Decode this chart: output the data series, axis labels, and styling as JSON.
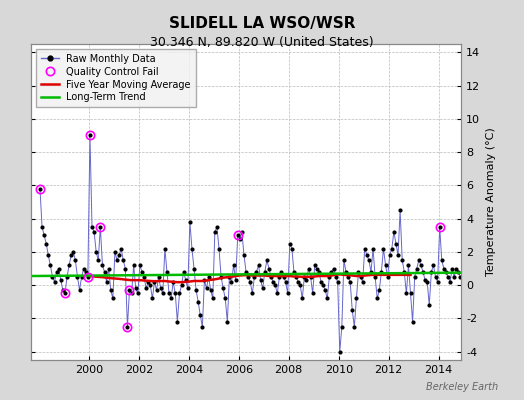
{
  "title": "SLIDELL LA WSO/WSR",
  "subtitle": "30.346 N, 89.820 W (United States)",
  "ylabel": "Temperature Anomaly (°C)",
  "watermark": "Berkeley Earth",
  "ylim": [
    -4.5,
    14.5
  ],
  "yticks": [
    -4,
    -2,
    0,
    2,
    4,
    6,
    8,
    10,
    12,
    14
  ],
  "xlim": [
    1997.7,
    2014.9
  ],
  "xticks": [
    2000,
    2002,
    2004,
    2006,
    2008,
    2010,
    2012,
    2014
  ],
  "bg_color": "#d8d8d8",
  "plot_bg_color": "#ffffff",
  "line_color": "#6666cc",
  "dot_color": "#000000",
  "ma_color": "#dd0000",
  "trend_color": "#00bb00",
  "qc_color": "#ff00ff",
  "raw_data": [
    [
      1998.042,
      5.8
    ],
    [
      1998.125,
      3.5
    ],
    [
      1998.208,
      3.0
    ],
    [
      1998.292,
      2.5
    ],
    [
      1998.375,
      1.8
    ],
    [
      1998.458,
      1.2
    ],
    [
      1998.542,
      0.5
    ],
    [
      1998.625,
      0.2
    ],
    [
      1998.708,
      0.8
    ],
    [
      1998.792,
      1.0
    ],
    [
      1998.875,
      0.3
    ],
    [
      1998.958,
      -0.3
    ],
    [
      1999.042,
      -0.5
    ],
    [
      1999.125,
      0.5
    ],
    [
      1999.208,
      1.2
    ],
    [
      1999.292,
      1.8
    ],
    [
      1999.375,
      2.0
    ],
    [
      1999.458,
      1.5
    ],
    [
      1999.542,
      0.5
    ],
    [
      1999.625,
      -0.3
    ],
    [
      1999.708,
      0.5
    ],
    [
      1999.792,
      1.0
    ],
    [
      1999.875,
      0.8
    ],
    [
      1999.958,
      0.5
    ],
    [
      2000.042,
      9.0
    ],
    [
      2000.125,
      3.5
    ],
    [
      2000.208,
      3.2
    ],
    [
      2000.292,
      2.0
    ],
    [
      2000.375,
      1.5
    ],
    [
      2000.458,
      3.5
    ],
    [
      2000.542,
      1.2
    ],
    [
      2000.625,
      0.8
    ],
    [
      2000.708,
      0.2
    ],
    [
      2000.792,
      1.0
    ],
    [
      2000.875,
      -0.3
    ],
    [
      2000.958,
      -0.8
    ],
    [
      2001.042,
      2.0
    ],
    [
      2001.125,
      1.5
    ],
    [
      2001.208,
      1.8
    ],
    [
      2001.292,
      2.2
    ],
    [
      2001.375,
      1.5
    ],
    [
      2001.458,
      1.0
    ],
    [
      2001.542,
      -2.5
    ],
    [
      2001.625,
      -0.3
    ],
    [
      2001.708,
      -0.5
    ],
    [
      2001.792,
      1.2
    ],
    [
      2001.875,
      -0.2
    ],
    [
      2001.958,
      -0.5
    ],
    [
      2002.042,
      1.2
    ],
    [
      2002.125,
      0.8
    ],
    [
      2002.208,
      0.5
    ],
    [
      2002.292,
      -0.2
    ],
    [
      2002.375,
      0.2
    ],
    [
      2002.458,
      0.0
    ],
    [
      2002.542,
      -0.8
    ],
    [
      2002.625,
      0.2
    ],
    [
      2002.708,
      -0.3
    ],
    [
      2002.792,
      0.5
    ],
    [
      2002.875,
      -0.2
    ],
    [
      2002.958,
      -0.5
    ],
    [
      2003.042,
      2.2
    ],
    [
      2003.125,
      0.8
    ],
    [
      2003.208,
      -0.5
    ],
    [
      2003.292,
      -0.8
    ],
    [
      2003.375,
      0.2
    ],
    [
      2003.458,
      -0.5
    ],
    [
      2003.542,
      -2.2
    ],
    [
      2003.625,
      -0.5
    ],
    [
      2003.708,
      0.0
    ],
    [
      2003.792,
      0.8
    ],
    [
      2003.875,
      0.3
    ],
    [
      2003.958,
      -0.2
    ],
    [
      2004.042,
      3.8
    ],
    [
      2004.125,
      2.2
    ],
    [
      2004.208,
      1.0
    ],
    [
      2004.292,
      -0.3
    ],
    [
      2004.375,
      -1.0
    ],
    [
      2004.458,
      -1.8
    ],
    [
      2004.542,
      -2.5
    ],
    [
      2004.625,
      0.3
    ],
    [
      2004.708,
      -0.2
    ],
    [
      2004.792,
      0.5
    ],
    [
      2004.875,
      -0.3
    ],
    [
      2004.958,
      -0.8
    ],
    [
      2005.042,
      3.2
    ],
    [
      2005.125,
      3.5
    ],
    [
      2005.208,
      2.2
    ],
    [
      2005.292,
      0.5
    ],
    [
      2005.375,
      -0.2
    ],
    [
      2005.458,
      -0.8
    ],
    [
      2005.542,
      -2.2
    ],
    [
      2005.625,
      0.5
    ],
    [
      2005.708,
      0.2
    ],
    [
      2005.792,
      1.2
    ],
    [
      2005.875,
      0.3
    ],
    [
      2005.958,
      3.0
    ],
    [
      2006.042,
      2.8
    ],
    [
      2006.125,
      3.2
    ],
    [
      2006.208,
      1.8
    ],
    [
      2006.292,
      0.8
    ],
    [
      2006.375,
      0.5
    ],
    [
      2006.458,
      0.2
    ],
    [
      2006.542,
      -0.5
    ],
    [
      2006.625,
      0.5
    ],
    [
      2006.708,
      0.8
    ],
    [
      2006.792,
      1.2
    ],
    [
      2006.875,
      0.3
    ],
    [
      2006.958,
      -0.2
    ],
    [
      2007.042,
      0.8
    ],
    [
      2007.125,
      1.5
    ],
    [
      2007.208,
      1.0
    ],
    [
      2007.292,
      0.5
    ],
    [
      2007.375,
      0.2
    ],
    [
      2007.458,
      0.0
    ],
    [
      2007.542,
      -0.5
    ],
    [
      2007.625,
      0.5
    ],
    [
      2007.708,
      0.8
    ],
    [
      2007.792,
      0.5
    ],
    [
      2007.875,
      0.2
    ],
    [
      2007.958,
      -0.5
    ],
    [
      2008.042,
      2.5
    ],
    [
      2008.125,
      2.2
    ],
    [
      2008.208,
      0.8
    ],
    [
      2008.292,
      0.5
    ],
    [
      2008.375,
      0.2
    ],
    [
      2008.458,
      0.0
    ],
    [
      2008.542,
      -0.8
    ],
    [
      2008.625,
      0.5
    ],
    [
      2008.708,
      0.3
    ],
    [
      2008.792,
      1.0
    ],
    [
      2008.875,
      0.5
    ],
    [
      2008.958,
      -0.5
    ],
    [
      2009.042,
      1.2
    ],
    [
      2009.125,
      1.0
    ],
    [
      2009.208,
      0.8
    ],
    [
      2009.292,
      0.2
    ],
    [
      2009.375,
      0.0
    ],
    [
      2009.458,
      -0.3
    ],
    [
      2009.542,
      -0.8
    ],
    [
      2009.625,
      0.5
    ],
    [
      2009.708,
      0.8
    ],
    [
      2009.792,
      1.0
    ],
    [
      2009.875,
      0.5
    ],
    [
      2009.958,
      0.2
    ],
    [
      2010.042,
      -4.0
    ],
    [
      2010.125,
      -2.5
    ],
    [
      2010.208,
      1.5
    ],
    [
      2010.292,
      0.8
    ],
    [
      2010.375,
      0.5
    ],
    [
      2010.458,
      0.2
    ],
    [
      2010.542,
      -1.5
    ],
    [
      2010.625,
      -2.5
    ],
    [
      2010.708,
      -0.8
    ],
    [
      2010.792,
      0.8
    ],
    [
      2010.875,
      0.5
    ],
    [
      2010.958,
      0.2
    ],
    [
      2011.042,
      2.2
    ],
    [
      2011.125,
      1.8
    ],
    [
      2011.208,
      1.5
    ],
    [
      2011.292,
      0.8
    ],
    [
      2011.375,
      2.2
    ],
    [
      2011.458,
      0.5
    ],
    [
      2011.542,
      -0.8
    ],
    [
      2011.625,
      -0.3
    ],
    [
      2011.708,
      0.8
    ],
    [
      2011.792,
      2.2
    ],
    [
      2011.875,
      1.2
    ],
    [
      2011.958,
      0.5
    ],
    [
      2012.042,
      1.8
    ],
    [
      2012.125,
      2.2
    ],
    [
      2012.208,
      3.2
    ],
    [
      2012.292,
      2.5
    ],
    [
      2012.375,
      1.8
    ],
    [
      2012.458,
      4.5
    ],
    [
      2012.542,
      1.5
    ],
    [
      2012.625,
      0.8
    ],
    [
      2012.708,
      -0.5
    ],
    [
      2012.792,
      1.2
    ],
    [
      2012.875,
      -0.5
    ],
    [
      2012.958,
      -2.2
    ],
    [
      2013.042,
      0.5
    ],
    [
      2013.125,
      1.0
    ],
    [
      2013.208,
      1.5
    ],
    [
      2013.292,
      1.2
    ],
    [
      2013.375,
      0.8
    ],
    [
      2013.458,
      0.3
    ],
    [
      2013.542,
      0.2
    ],
    [
      2013.625,
      -1.2
    ],
    [
      2013.708,
      0.8
    ],
    [
      2013.792,
      1.2
    ],
    [
      2013.875,
      0.5
    ],
    [
      2013.958,
      0.2
    ],
    [
      2014.042,
      3.5
    ],
    [
      2014.125,
      1.5
    ],
    [
      2014.208,
      1.0
    ],
    [
      2014.292,
      0.8
    ],
    [
      2014.375,
      0.5
    ],
    [
      2014.458,
      0.2
    ],
    [
      2014.542,
      1.0
    ],
    [
      2014.625,
      0.5
    ],
    [
      2014.708,
      1.0
    ],
    [
      2014.792,
      0.8
    ],
    [
      2014.875,
      0.5
    ]
  ],
  "qc_fails": [
    [
      1998.042,
      5.8
    ],
    [
      1999.042,
      -0.5
    ],
    [
      1999.958,
      0.5
    ],
    [
      2000.042,
      9.0
    ],
    [
      2000.458,
      3.5
    ],
    [
      2001.542,
      -2.5
    ],
    [
      2001.625,
      -0.3
    ],
    [
      2005.958,
      3.0
    ],
    [
      2014.042,
      3.5
    ]
  ],
  "moving_avg": [
    [
      2000.042,
      0.55
    ],
    [
      2000.208,
      0.52
    ],
    [
      2000.375,
      0.5
    ],
    [
      2000.542,
      0.48
    ],
    [
      2000.708,
      0.45
    ],
    [
      2000.875,
      0.42
    ],
    [
      2001.042,
      0.4
    ],
    [
      2001.208,
      0.38
    ],
    [
      2001.375,
      0.35
    ],
    [
      2001.542,
      0.32
    ],
    [
      2001.708,
      0.3
    ],
    [
      2001.875,
      0.3
    ],
    [
      2002.042,
      0.3
    ],
    [
      2002.208,
      0.28
    ],
    [
      2002.375,
      0.26
    ],
    [
      2002.542,
      0.24
    ],
    [
      2002.708,
      0.24
    ],
    [
      2002.875,
      0.25
    ],
    [
      2003.042,
      0.25
    ],
    [
      2003.208,
      0.22
    ],
    [
      2003.375,
      0.2
    ],
    [
      2003.542,
      0.18
    ],
    [
      2003.708,
      0.18
    ],
    [
      2003.875,
      0.2
    ],
    [
      2004.042,
      0.22
    ],
    [
      2004.208,
      0.25
    ],
    [
      2004.375,
      0.25
    ],
    [
      2004.542,
      0.25
    ],
    [
      2004.708,
      0.28
    ],
    [
      2004.875,
      0.32
    ],
    [
      2005.042,
      0.35
    ],
    [
      2005.208,
      0.4
    ],
    [
      2005.375,
      0.45
    ],
    [
      2005.542,
      0.48
    ],
    [
      2005.708,
      0.5
    ],
    [
      2005.875,
      0.55
    ],
    [
      2006.042,
      0.58
    ],
    [
      2006.208,
      0.6
    ],
    [
      2006.375,
      0.6
    ],
    [
      2006.542,
      0.58
    ],
    [
      2006.708,
      0.58
    ],
    [
      2006.875,
      0.58
    ],
    [
      2007.042,
      0.58
    ],
    [
      2007.208,
      0.55
    ],
    [
      2007.375,
      0.55
    ],
    [
      2007.542,
      0.55
    ],
    [
      2007.708,
      0.55
    ],
    [
      2007.875,
      0.55
    ],
    [
      2008.042,
      0.55
    ],
    [
      2008.208,
      0.52
    ],
    [
      2008.375,
      0.52
    ],
    [
      2008.542,
      0.5
    ],
    [
      2008.708,
      0.5
    ],
    [
      2008.875,
      0.5
    ],
    [
      2009.042,
      0.52
    ],
    [
      2009.208,
      0.55
    ],
    [
      2009.375,
      0.55
    ],
    [
      2009.542,
      0.55
    ],
    [
      2009.708,
      0.58
    ],
    [
      2009.875,
      0.62
    ],
    [
      2010.042,
      0.65
    ],
    [
      2010.208,
      0.62
    ],
    [
      2010.375,
      0.6
    ],
    [
      2010.542,
      0.58
    ],
    [
      2010.708,
      0.55
    ],
    [
      2010.875,
      0.55
    ],
    [
      2011.042,
      0.58
    ],
    [
      2011.208,
      0.6
    ],
    [
      2011.375,
      0.62
    ],
    [
      2011.542,
      0.62
    ],
    [
      2011.708,
      0.62
    ],
    [
      2011.875,
      0.62
    ],
    [
      2012.042,
      0.62
    ],
    [
      2012.208,
      0.62
    ],
    [
      2012.375,
      0.62
    ],
    [
      2012.542,
      0.62
    ],
    [
      2012.708,
      0.62
    ],
    [
      2012.875,
      0.62
    ]
  ],
  "trend_x": [
    1997.7,
    2014.9
  ],
  "trend_y": [
    0.55,
    0.75
  ],
  "legend_labels": [
    "Raw Monthly Data",
    "Quality Control Fail",
    "Five Year Moving Average",
    "Long-Term Trend"
  ]
}
